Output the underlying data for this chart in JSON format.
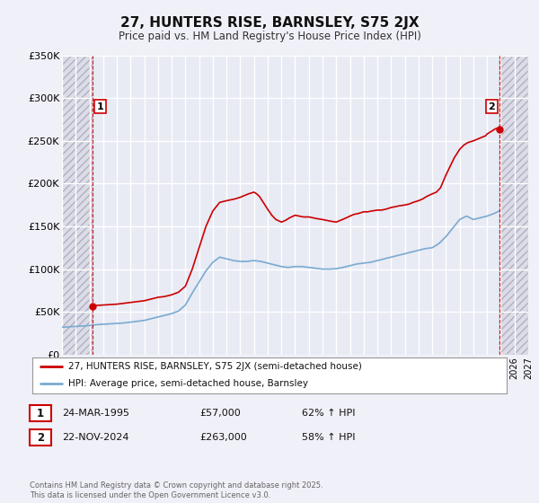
{
  "title": "27, HUNTERS RISE, BARNSLEY, S75 2JX",
  "subtitle": "Price paid vs. HM Land Registry's House Price Index (HPI)",
  "bg_color": "#f0f0f8",
  "plot_bg_color": "#e8eaf4",
  "hatch_bg_color": "#dcdce8",
  "grid_color": "#ffffff",
  "red_color": "#cc0000",
  "blue_color": "#7aaad0",
  "marker1_x": 1995.23,
  "marker1_y": 57000,
  "marker2_x": 2024.9,
  "marker2_y": 263000,
  "xlim": [
    1993,
    2027
  ],
  "ylim": [
    0,
    350000
  ],
  "yticks": [
    0,
    50000,
    100000,
    150000,
    200000,
    250000,
    300000,
    350000
  ],
  "ytick_labels": [
    "£0",
    "£50K",
    "£100K",
    "£150K",
    "£200K",
    "£250K",
    "£300K",
    "£350K"
  ],
  "legend_label_red": "27, HUNTERS RISE, BARNSLEY, S75 2JX (semi-detached house)",
  "legend_label_blue": "HPI: Average price, semi-detached house, Barnsley",
  "info1": [
    "1",
    "24-MAR-1995",
    "£57,000",
    "62% ↑ HPI"
  ],
  "info2": [
    "2",
    "22-NOV-2024",
    "£263,000",
    "58% ↑ HPI"
  ],
  "footnote": "Contains HM Land Registry data © Crown copyright and database right 2025.\nThis data is licensed under the Open Government Licence v3.0.",
  "hpi_red_x": [
    1995.23,
    1995.5,
    1996.0,
    1996.5,
    1997.0,
    1997.5,
    1998.0,
    1998.5,
    1999.0,
    1999.5,
    2000.0,
    2000.5,
    2001.0,
    2001.5,
    2002.0,
    2002.5,
    2003.0,
    2003.5,
    2004.0,
    2004.5,
    2005.0,
    2005.3,
    2005.6,
    2006.0,
    2006.3,
    2006.6,
    2007.0,
    2007.2,
    2007.4,
    2007.6,
    2007.8,
    2008.0,
    2008.3,
    2008.6,
    2009.0,
    2009.3,
    2009.6,
    2010.0,
    2010.3,
    2010.6,
    2011.0,
    2011.3,
    2011.6,
    2012.0,
    2012.3,
    2012.6,
    2013.0,
    2013.3,
    2013.6,
    2014.0,
    2014.3,
    2014.6,
    2015.0,
    2015.3,
    2015.6,
    2016.0,
    2016.3,
    2016.6,
    2017.0,
    2017.3,
    2017.6,
    2018.0,
    2018.3,
    2018.6,
    2019.0,
    2019.3,
    2019.6,
    2020.0,
    2020.3,
    2020.6,
    2021.0,
    2021.3,
    2021.6,
    2022.0,
    2022.3,
    2022.6,
    2023.0,
    2023.3,
    2023.6,
    2023.9,
    2024.0,
    2024.2,
    2024.4,
    2024.6,
    2024.8,
    2024.9
  ],
  "hpi_red_y": [
    57000,
    57500,
    58000,
    58500,
    59000,
    60000,
    61000,
    62000,
    63000,
    65000,
    67000,
    68000,
    70000,
    73000,
    80000,
    100000,
    125000,
    150000,
    168000,
    178000,
    180000,
    181000,
    182000,
    184000,
    186000,
    188000,
    190000,
    188000,
    185000,
    180000,
    175000,
    170000,
    163000,
    158000,
    155000,
    157000,
    160000,
    163000,
    162000,
    161000,
    161000,
    160000,
    159000,
    158000,
    157000,
    156000,
    155000,
    157000,
    159000,
    162000,
    164000,
    165000,
    167000,
    167000,
    168000,
    169000,
    169000,
    170000,
    172000,
    173000,
    174000,
    175000,
    176000,
    178000,
    180000,
    182000,
    185000,
    188000,
    190000,
    195000,
    210000,
    220000,
    230000,
    240000,
    245000,
    248000,
    250000,
    252000,
    254000,
    256000,
    258000,
    260000,
    262000,
    264000,
    265000,
    263000
  ],
  "hpi_blue_x": [
    1993.0,
    1993.5,
    1994.0,
    1994.5,
    1995.0,
    1995.5,
    1996.0,
    1996.5,
    1997.0,
    1997.5,
    1998.0,
    1998.5,
    1999.0,
    1999.5,
    2000.0,
    2000.5,
    2001.0,
    2001.5,
    2002.0,
    2002.5,
    2003.0,
    2003.5,
    2004.0,
    2004.5,
    2005.0,
    2005.5,
    2006.0,
    2006.5,
    2007.0,
    2007.5,
    2008.0,
    2008.5,
    2009.0,
    2009.5,
    2010.0,
    2010.5,
    2011.0,
    2011.5,
    2012.0,
    2012.5,
    2013.0,
    2013.5,
    2014.0,
    2014.5,
    2015.0,
    2015.5,
    2016.0,
    2016.5,
    2017.0,
    2017.5,
    2018.0,
    2018.5,
    2019.0,
    2019.5,
    2020.0,
    2020.5,
    2021.0,
    2021.5,
    2022.0,
    2022.5,
    2023.0,
    2023.5,
    2024.0,
    2024.5,
    2024.9
  ],
  "hpi_blue_y": [
    32000,
    32500,
    33000,
    33500,
    34000,
    35000,
    35500,
    36000,
    36500,
    37000,
    38000,
    39000,
    40000,
    42000,
    44000,
    46000,
    48000,
    51000,
    58000,
    72000,
    85000,
    98000,
    108000,
    114000,
    112000,
    110000,
    109000,
    109000,
    110000,
    109000,
    107000,
    105000,
    103000,
    102000,
    103000,
    103000,
    102000,
    101000,
    100000,
    100000,
    100500,
    102000,
    104000,
    106000,
    107000,
    108000,
    110000,
    112000,
    114000,
    116000,
    118000,
    120000,
    122000,
    124000,
    125000,
    130000,
    138000,
    148000,
    158000,
    162000,
    158000,
    160000,
    162000,
    165000,
    168000
  ]
}
